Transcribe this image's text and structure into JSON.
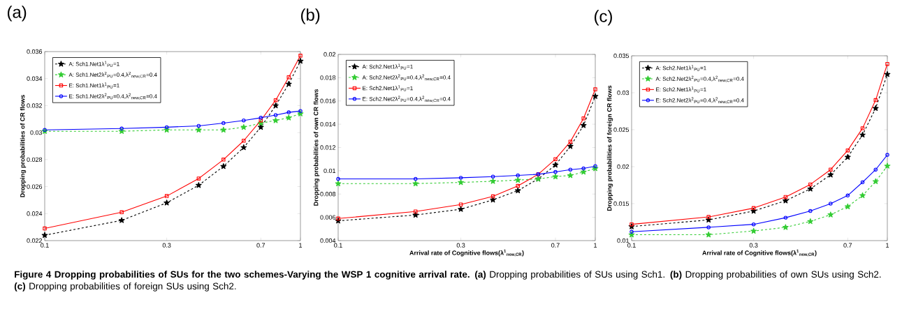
{
  "chart_data": [
    {
      "type": "line",
      "title": "(a)",
      "ylabel": "Dropping probabilities of CR flows",
      "log": "x",
      "legend": "top left",
      "x": [
        0.1,
        0.2,
        0.3,
        0.4,
        0.5,
        0.6,
        0.7,
        0.8,
        0.9,
        1.0
      ],
      "xlim": [
        0.1,
        1
      ],
      "xticks": [
        0.1,
        0.3,
        0.7,
        1
      ],
      "ylim": [
        0.022,
        0.036
      ],
      "yticks": [
        0.022,
        0.024,
        0.026,
        0.028,
        0.03,
        0.032,
        0.034,
        0.036
      ],
      "series": [
        {
          "name": "A: Sch1.Net1λ$^{1}$$_{PU}$=1",
          "color": "#000000",
          "marker": "star",
          "line_style": "dashed",
          "values": [
            0.0224,
            0.0235,
            0.0248,
            0.0261,
            0.0275,
            0.0289,
            0.0304,
            0.032,
            0.0336,
            0.0353
          ]
        },
        {
          "name": "A: Sch1.Net2λ$^{2}$$_{PU}$=0.4,λ$^{2}$$_{new,CR}$=0.4",
          "color": "#33cc33",
          "marker": "star",
          "line_style": "dashed",
          "values": [
            0.0301,
            0.0301,
            0.0302,
            0.0302,
            0.0302,
            0.0304,
            0.0307,
            0.0309,
            0.0311,
            0.0314
          ]
        },
        {
          "name": "E: Sch1.Net1λ$^{1}$$_{PU}$=1",
          "color": "#ff0000",
          "marker": "square",
          "line_style": "solid",
          "values": [
            0.0229,
            0.0241,
            0.0253,
            0.0266,
            0.028,
            0.0294,
            0.0309,
            0.0324,
            0.0341,
            0.0357
          ]
        },
        {
          "name": "E: Sch1.Net2λ$^{2}$$_{PU}$=0.4,λ$^{2}$$_{new,CR}$=0.4",
          "color": "#0000ff",
          "marker": "circle",
          "line_style": "solid",
          "values": [
            0.0302,
            0.0303,
            0.0304,
            0.0305,
            0.0307,
            0.0309,
            0.0311,
            0.0313,
            0.0315,
            0.0316
          ]
        }
      ],
      "annotations": [
        "**Figure 4 Dropping probabilities of SUs for the two schemes-Varying the WSP 1 cognitive arrival rate.** **(a)** Dropping probabilities of SUs using Sch1. **(b)** Dropping probabilities of own SUs using Sch2. **(c)** Dropping probabilities of foreign SUs using Sch2."
      ]
    },
    {
      "type": "line",
      "title": "(b)",
      "xlabel": "Arrival rate of Cognitive flows(λ$^{1}$$_{new,CR}$)",
      "ylabel": "Dropping probabilities of own CR flows",
      "log": "x",
      "legend": "top left",
      "x": [
        0.1,
        0.2,
        0.3,
        0.4,
        0.5,
        0.6,
        0.7,
        0.8,
        0.9,
        1.0
      ],
      "xlim": [
        0.1,
        1
      ],
      "xticks": [
        0.1,
        0.3,
        0.7,
        1
      ],
      "ylim": [
        0.004,
        0.02
      ],
      "yticks": [
        0.004,
        0.006,
        0.008,
        0.01,
        0.012,
        0.014,
        0.016,
        0.018,
        0.02
      ],
      "series": [
        {
          "name": "A: Sch2.Net1λ$^{1}$$_{PU}$=1",
          "color": "#000000",
          "marker": "star",
          "line_style": "dashed",
          "values": [
            0.0057,
            0.0062,
            0.0067,
            0.0075,
            0.0083,
            0.0093,
            0.0105,
            0.0121,
            0.0139,
            0.0164
          ]
        },
        {
          "name": "A: Sch2.Net2λ$^{2}$$_{PU}$=0.4,λ$^{2}$$_{new,CR}$=0.4",
          "color": "#33cc33",
          "marker": "star",
          "line_style": "dashed",
          "values": [
            0.0089,
            0.0089,
            0.009,
            0.0091,
            0.0092,
            0.0093,
            0.0095,
            0.0096,
            0.0099,
            0.0102
          ]
        },
        {
          "name": "E: Sch2.Net1λ$^{1}$$_{PU}$=1",
          "color": "#ff0000",
          "marker": "square",
          "line_style": "solid",
          "values": [
            0.0059,
            0.0065,
            0.0071,
            0.0078,
            0.0087,
            0.0097,
            0.011,
            0.0125,
            0.0145,
            0.017
          ]
        },
        {
          "name": "E: Sch2.Net2λ$^{2}$$_{PU}$=0.4,λ$^{2}$$_{new,CR}$=0.4",
          "color": "#0000ff",
          "marker": "circle",
          "line_style": "solid",
          "values": [
            0.0093,
            0.0093,
            0.0094,
            0.0095,
            0.0096,
            0.0097,
            0.0099,
            0.0101,
            0.0102,
            0.0104
          ]
        }
      ]
    },
    {
      "type": "line",
      "title": "(c)",
      "xlabel": "Arrival rate of Cognitive flows(λ$^{1}$$_{new,CR}$)",
      "ylabel": "Dropping probabilities of foreign CR flows",
      "log": "x",
      "legend": "top left",
      "x": [
        0.1,
        0.2,
        0.3,
        0.4,
        0.5,
        0.6,
        0.7,
        0.8,
        0.9,
        1.0
      ],
      "xlim": [
        0.1,
        1
      ],
      "xticks": [
        0.1,
        0.3,
        0.7,
        1
      ],
      "ylim": [
        0.01,
        0.035
      ],
      "yticks": [
        0.01,
        0.015,
        0.02,
        0.025,
        0.03,
        0.035
      ],
      "series": [
        {
          "name": "A: Sch2.Net1λ$^{1}$$_{PU}$=1",
          "color": "#000000",
          "marker": "star",
          "line_style": "dashed",
          "values": [
            0.0119,
            0.0128,
            0.014,
            0.0154,
            0.017,
            0.0189,
            0.0213,
            0.0243,
            0.0279,
            0.0325
          ]
        },
        {
          "name": "A: Sch2.Net2λ$^{2}$$_{PU}$=0.4,λ$^{2}$$_{new,CR}$=0.4",
          "color": "#33cc33",
          "marker": "star",
          "line_style": "dashed",
          "values": [
            0.0108,
            0.0108,
            0.0113,
            0.0118,
            0.0126,
            0.0135,
            0.0146,
            0.0161,
            0.018,
            0.0201
          ]
        },
        {
          "name": "E: Sch2.Net1λ$^{1}$$_{PU}$=1",
          "color": "#ff0000",
          "marker": "square",
          "line_style": "solid",
          "values": [
            0.0122,
            0.0132,
            0.0144,
            0.0159,
            0.0176,
            0.0196,
            0.0222,
            0.0252,
            0.029,
            0.0339
          ]
        },
        {
          "name": "E: Sch2.Net2λ$^{2}$$_{PU}$=0.4,λ$^{2}$$_{new,CR}$=0.4",
          "color": "#0000ff",
          "marker": "circle",
          "line_style": "solid",
          "values": [
            0.0112,
            0.0118,
            0.0122,
            0.0131,
            0.014,
            0.015,
            0.0161,
            0.0179,
            0.0196,
            0.0216
          ]
        }
      ]
    }
  ]
}
